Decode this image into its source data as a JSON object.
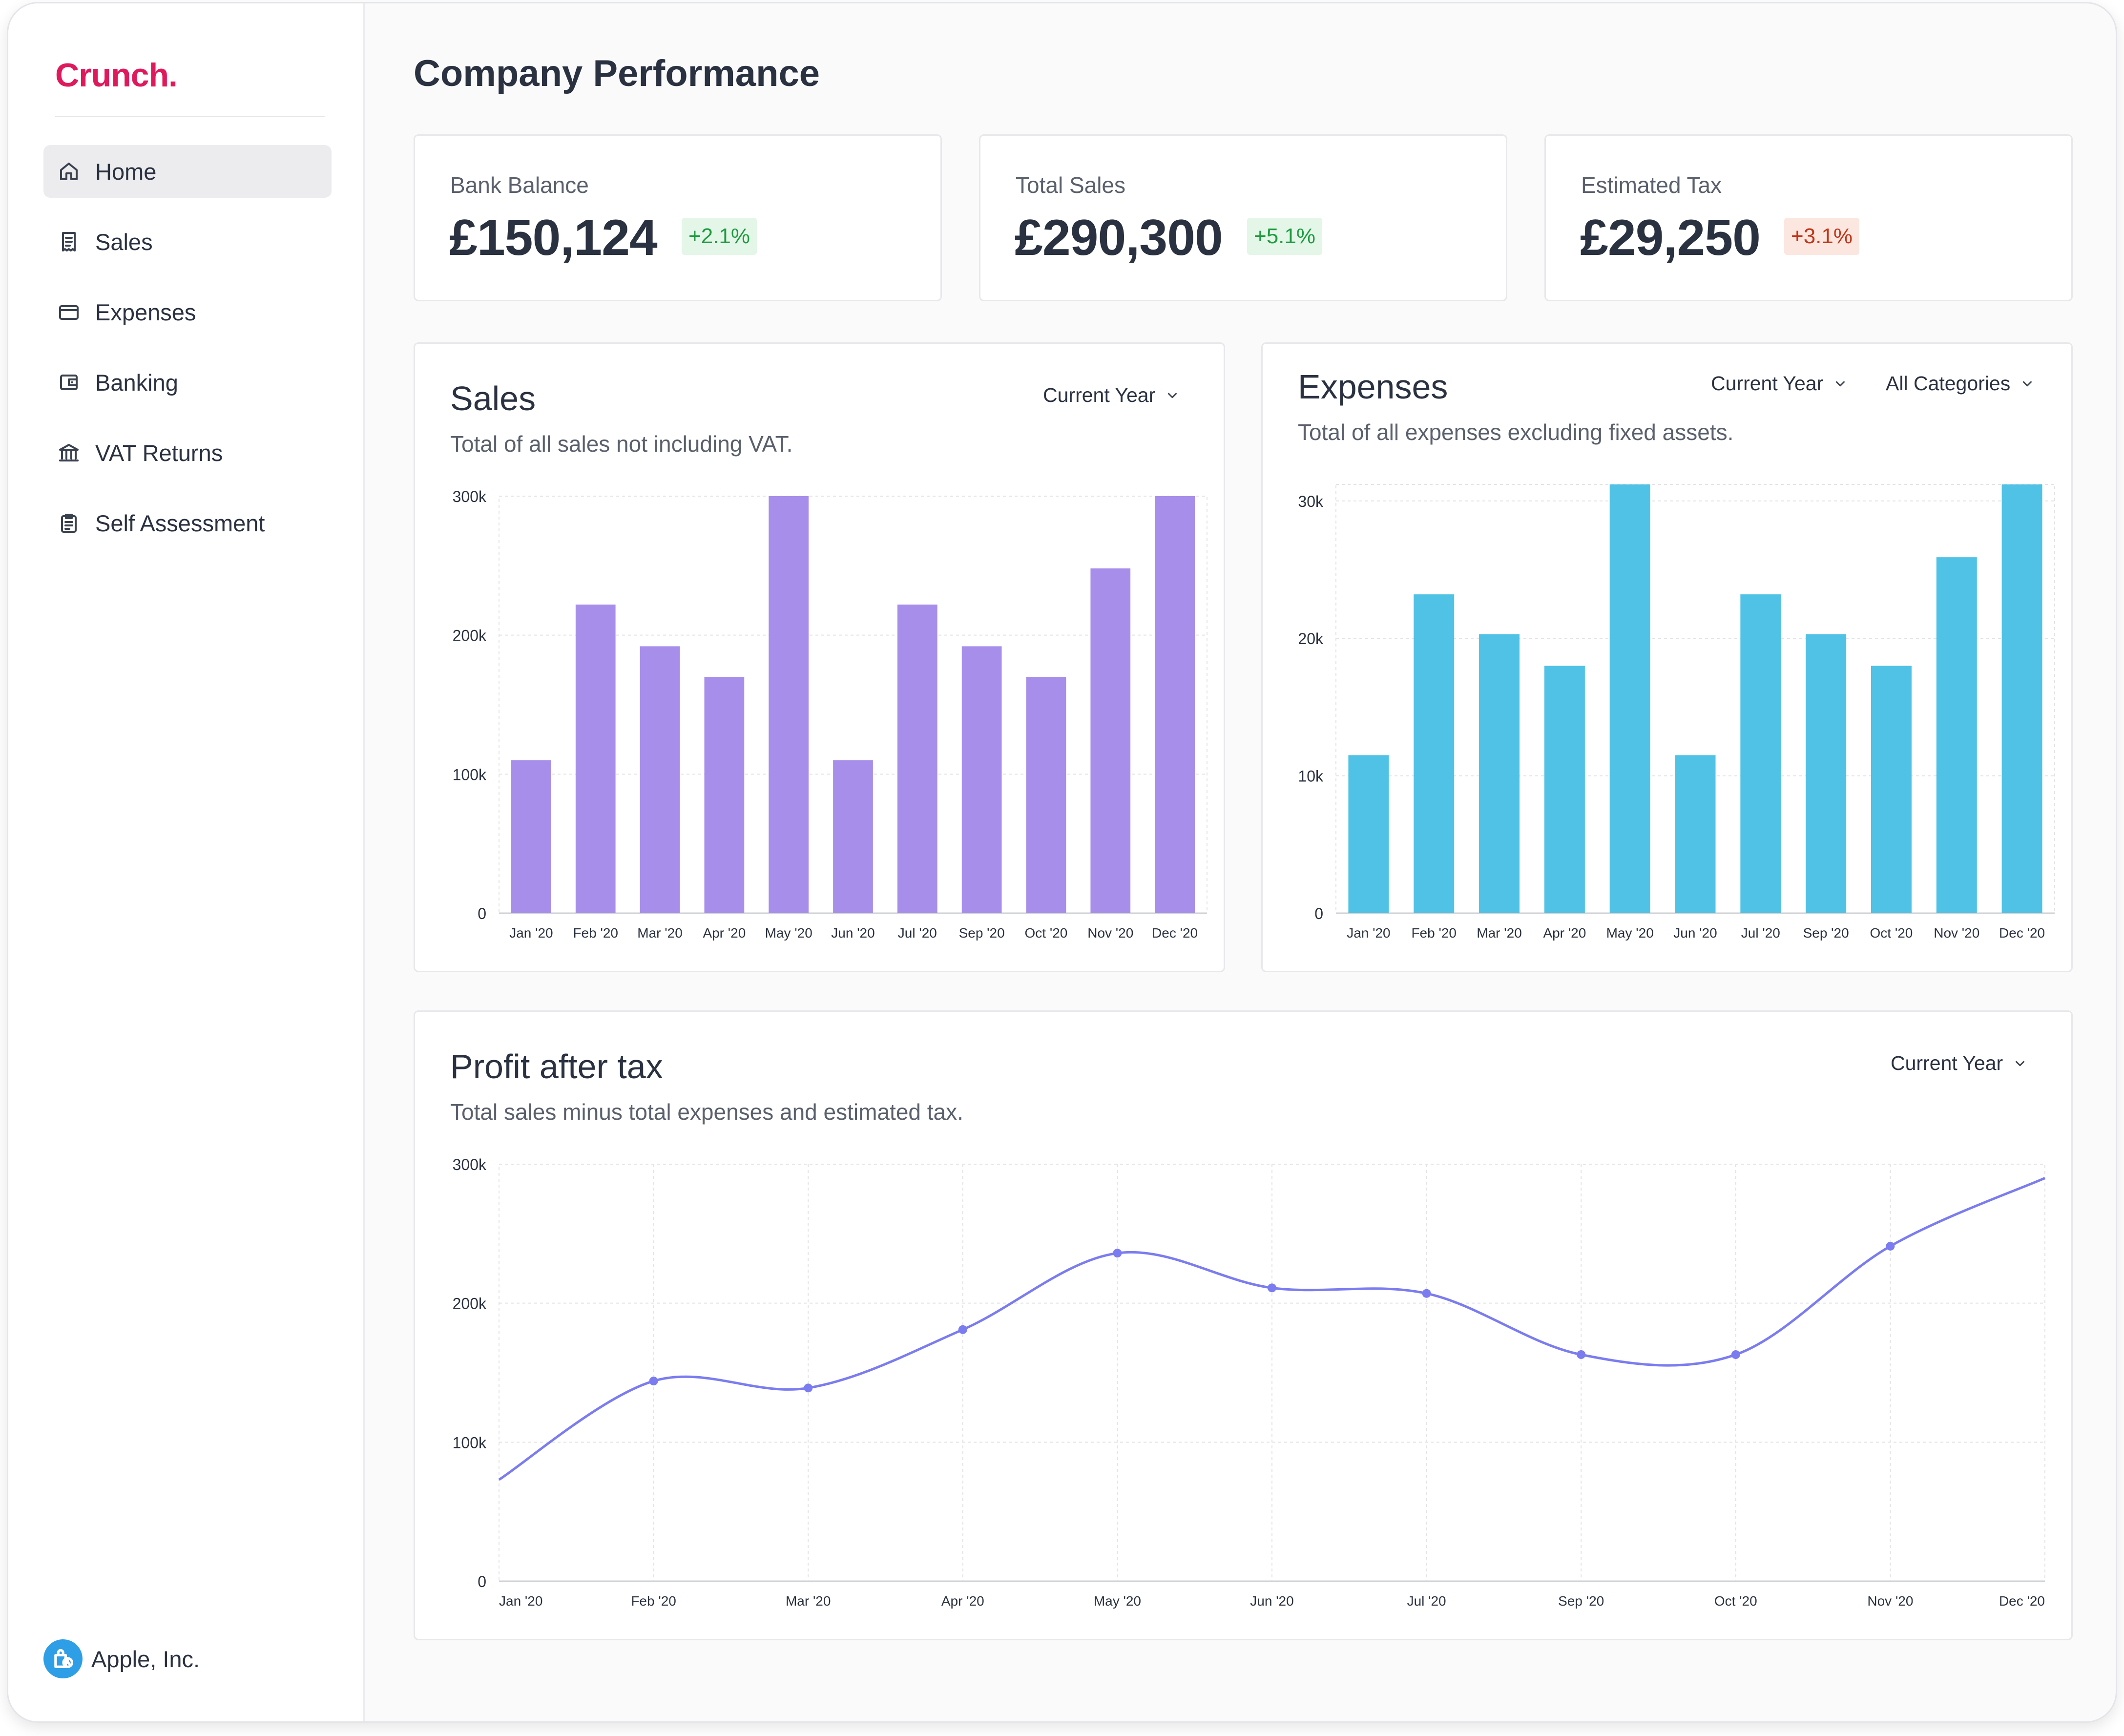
{
  "app": {
    "logo": "Crunch."
  },
  "sidebar": {
    "items": [
      {
        "label": "Home",
        "icon": "home-icon",
        "active": true
      },
      {
        "label": "Sales",
        "icon": "receipt-icon",
        "active": false
      },
      {
        "label": "Expenses",
        "icon": "credit-card-icon",
        "active": false
      },
      {
        "label": "Banking",
        "icon": "wallet-icon",
        "active": false
      },
      {
        "label": "VAT Returns",
        "icon": "bank-icon",
        "active": false
      },
      {
        "label": "Self Assessment",
        "icon": "clipboard-icon",
        "active": false
      }
    ],
    "company": "Apple, Inc."
  },
  "page": {
    "title": "Company Performance"
  },
  "kpis": [
    {
      "label": "Bank Balance",
      "value": "£150,124",
      "change": "+2.1%",
      "trend": "up"
    },
    {
      "label": "Total Sales",
      "value": "£290,300",
      "change": "+5.1%",
      "trend": "up"
    },
    {
      "label": "Estimated Tax",
      "value": "£29,250",
      "change": "+3.1%",
      "trend": "down"
    }
  ],
  "colors": {
    "accent": "#e0195c",
    "sales": "#a68eea",
    "expenses": "#4fc2e5",
    "profit": "#7b7cf0",
    "up": "#1f9a41",
    "down": "#c2361a"
  },
  "sales": {
    "title": "Sales",
    "subtitle": "Total of all sales not including VAT.",
    "period": "Current Year"
  },
  "expenses": {
    "title": "Expenses",
    "subtitle": "Total of all expenses excluding fixed assets.",
    "period": "Current Year",
    "category": "All Categories"
  },
  "profit": {
    "title": "Profit after tax",
    "subtitle": "Total sales minus total expenses and estimated tax.",
    "period": "Current Year"
  },
  "chart_data": [
    {
      "id": "sales",
      "type": "bar",
      "categories": [
        "Jan '20",
        "Feb '20",
        "Mar '20",
        "Apr '20",
        "May '20",
        "Jun '20",
        "Jul '20",
        "Sep '20",
        "Oct '20",
        "Nov '20",
        "Dec '20"
      ],
      "values": [
        110000,
        222000,
        192000,
        170000,
        300000,
        110000,
        222000,
        192000,
        170000,
        248000,
        300000
      ],
      "ylim": [
        0,
        300000
      ],
      "yticks": [
        0,
        100000,
        200000,
        300000
      ],
      "ytick_labels": [
        "0",
        "100k",
        "200k",
        "300k"
      ],
      "grid": true
    },
    {
      "id": "expenses",
      "type": "bar",
      "categories": [
        "Jan '20",
        "Feb '20",
        "Mar '20",
        "Apr '20",
        "May '20",
        "Jun '20",
        "Jul '20",
        "Sep '20",
        "Oct '20",
        "Nov '20",
        "Dec '20"
      ],
      "values": [
        11500,
        23200,
        20300,
        18000,
        31200,
        11500,
        23200,
        20300,
        18000,
        25900,
        31200
      ],
      "ylim": [
        0,
        31200
      ],
      "yticks": [
        0,
        10000,
        20000,
        30000
      ],
      "ytick_labels": [
        "0",
        "10k",
        "20k",
        "30k"
      ],
      "grid": true
    },
    {
      "id": "profit",
      "type": "line",
      "x": [
        "Jan '20",
        "Feb '20",
        "Mar '20",
        "Apr '20",
        "May '20",
        "Jun '20",
        "Jul '20",
        "Sep '20",
        "Oct '20",
        "Nov '20",
        "Dec '20"
      ],
      "values": [
        73000,
        144000,
        139000,
        181000,
        236000,
        211000,
        207000,
        163000,
        163000,
        241000,
        290000
      ],
      "ylim": [
        0,
        300000
      ],
      "yticks": [
        0,
        100000,
        200000,
        300000
      ],
      "ytick_labels": [
        "0",
        "100k",
        "200k",
        "300k"
      ],
      "grid": true
    }
  ]
}
